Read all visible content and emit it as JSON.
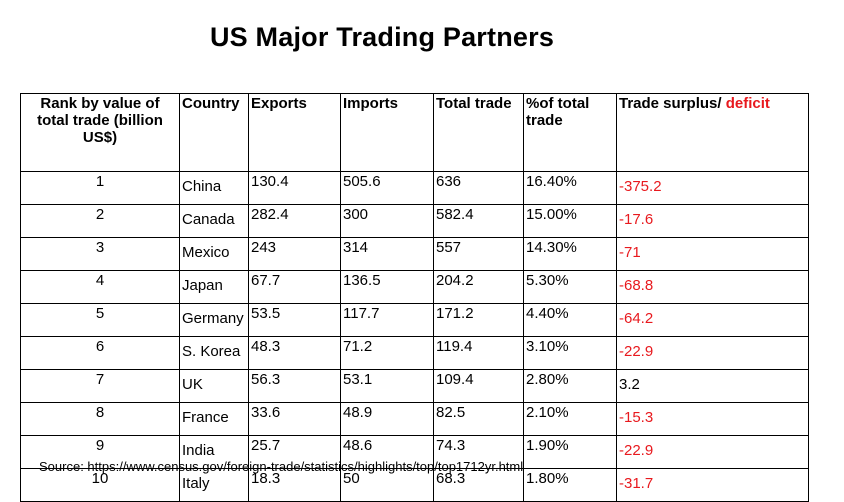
{
  "title": "US Major Trading Partners",
  "headers": {
    "rank": "Rank by value of total trade (billion US$)",
    "country": "Country",
    "exports": "Exports",
    "imports": "Imports",
    "total": "Total trade",
    "share": "%of total trade",
    "balance_prefix": "Trade surplus/ ",
    "balance_deficit": "deficit"
  },
  "colors": {
    "deficit": "#e8191e",
    "surplus": "#000000"
  },
  "rows": [
    {
      "rank": "1",
      "country": "China",
      "exports": "130.4",
      "imports": "505.6",
      "total": "636",
      "share": "16.40%",
      "balance": "-375.2",
      "negative": true
    },
    {
      "rank": "2",
      "country": "Canada",
      "exports": "282.4",
      "imports": "300",
      "total": "582.4",
      "share": "15.00%",
      "balance": "-17.6",
      "negative": true
    },
    {
      "rank": "3",
      "country": "Mexico",
      "exports": "243",
      "imports": "314",
      "total": "557",
      "share": "14.30%",
      "balance": "-71",
      "negative": true
    },
    {
      "rank": "4",
      "country": "Japan",
      "exports": "67.7",
      "imports": "136.5",
      "total": "204.2",
      "share": "5.30%",
      "balance": "-68.8",
      "negative": true
    },
    {
      "rank": "5",
      "country": "Germany",
      "exports": "53.5",
      "imports": "117.7",
      "total": "171.2",
      "share": "4.40%",
      "balance": "-64.2",
      "negative": true
    },
    {
      "rank": "6",
      "country": "S. Korea",
      "exports": "48.3",
      "imports": "71.2",
      "total": "119.4",
      "share": "3.10%",
      "balance": "-22.9",
      "negative": true
    },
    {
      "rank": "7",
      "country": "UK",
      "exports": "56.3",
      "imports": "53.1",
      "total": "109.4",
      "share": "2.80%",
      "balance": "3.2",
      "negative": false
    },
    {
      "rank": "8",
      "country": "France",
      "exports": "33.6",
      "imports": "48.9",
      "total": "82.5",
      "share": "2.10%",
      "balance": "-15.3",
      "negative": true
    },
    {
      "rank": "9",
      "country": "India",
      "exports": "25.7",
      "imports": "48.6",
      "total": "74.3",
      "share": "1.90%",
      "balance": "-22.9",
      "negative": true
    },
    {
      "rank": "10",
      "country": "Italy",
      "exports": "18.3",
      "imports": "50",
      "total": "68.3",
      "share": "1.80%",
      "balance": "-31.7",
      "negative": true
    }
  ],
  "source": "Source: https://www.census.gov/foreign-trade/statistics/highlights/top/top1712yr.html"
}
